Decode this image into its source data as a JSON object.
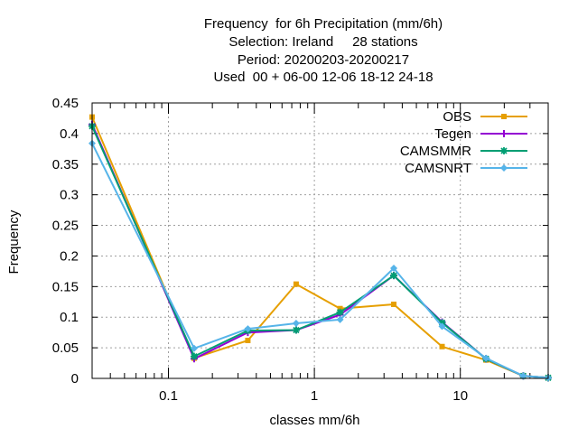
{
  "chart_data": {
    "type": "line",
    "title_lines": [
      "Frequency  for 6h Precipitation (mm/6h)",
      "Selection: Ireland     28 stations",
      "Period: 20200203-20200217",
      "Used  00 + 06-00 12-06 18-12 24-18"
    ],
    "xlabel": "classes mm/6h",
    "ylabel": "Frequency",
    "x_scale": "log",
    "xlim": [
      0.03,
      40
    ],
    "ylim": [
      0,
      0.45
    ],
    "x_ticks": [
      {
        "value": 0.1,
        "label": "0.1"
      },
      {
        "value": 1,
        "label": "1"
      },
      {
        "value": 10,
        "label": "10"
      }
    ],
    "y_ticks": [
      {
        "value": 0,
        "label": "0"
      },
      {
        "value": 0.05,
        "label": "0.05"
      },
      {
        "value": 0.1,
        "label": "0.1"
      },
      {
        "value": 0.15,
        "label": "0.15"
      },
      {
        "value": 0.2,
        "label": "0.2"
      },
      {
        "value": 0.25,
        "label": "0.25"
      },
      {
        "value": 0.3,
        "label": "0.3"
      },
      {
        "value": 0.35,
        "label": "0.35"
      },
      {
        "value": 0.4,
        "label": "0.4"
      },
      {
        "value": 0.45,
        "label": "0.45"
      }
    ],
    "grid": true,
    "legend_position": "top-right",
    "x": [
      0.03,
      0.15,
      0.35,
      0.75,
      1.5,
      3.5,
      7.5,
      15,
      27,
      40
    ],
    "series": [
      {
        "name": "OBS",
        "color": "#e69f00",
        "marker": "square",
        "values": [
          0.427,
          0.033,
          0.062,
          0.154,
          0.114,
          0.121,
          0.052,
          0.03,
          0.004,
          0.001
        ]
      },
      {
        "name": "Tegen",
        "color": "#9400d3",
        "marker": "plus",
        "values": [
          0.415,
          0.032,
          0.075,
          0.079,
          0.104,
          0.168,
          0.092,
          0.032,
          0.004,
          0.001
        ]
      },
      {
        "name": "CAMSMMR",
        "color": "#009e73",
        "marker": "star",
        "values": [
          0.412,
          0.036,
          0.078,
          0.079,
          0.108,
          0.168,
          0.091,
          0.032,
          0.004,
          0.001
        ]
      },
      {
        "name": "CAMSNRT",
        "color": "#56b4e9",
        "marker": "diamond",
        "values": [
          0.384,
          0.049,
          0.081,
          0.09,
          0.096,
          0.18,
          0.085,
          0.033,
          0.004,
          0.001
        ]
      }
    ]
  }
}
